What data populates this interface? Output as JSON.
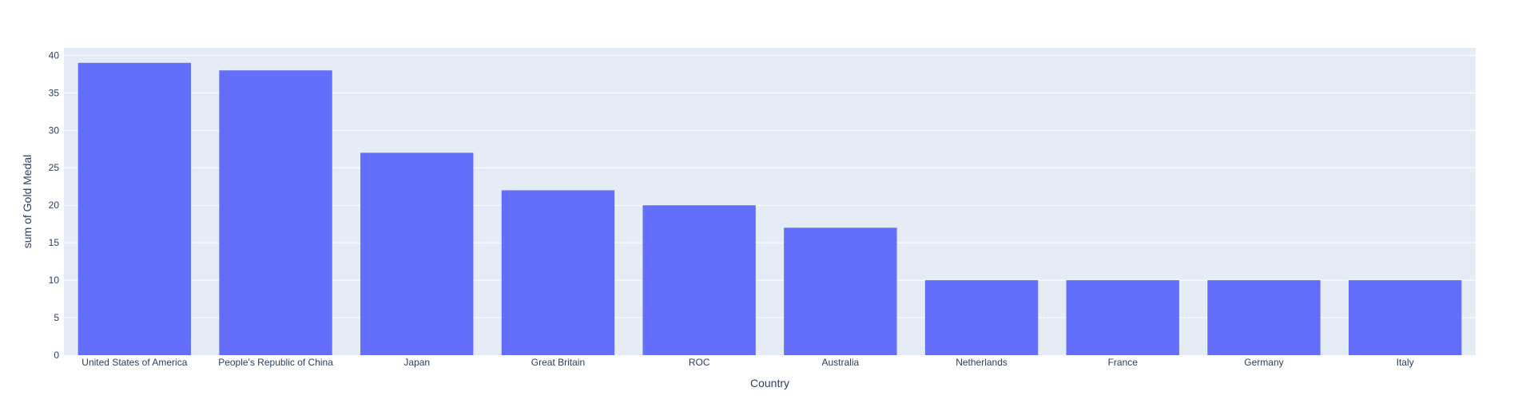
{
  "chart_data": {
    "type": "bar",
    "title": "",
    "xlabel": "Country",
    "ylabel": "sum of Gold Medal",
    "categories": [
      "United States of America",
      "People's Republic of China",
      "Japan",
      "Great Britain",
      "ROC",
      "Australia",
      "Netherlands",
      "France",
      "Germany",
      "Italy"
    ],
    "values": [
      39,
      38,
      27,
      22,
      20,
      17,
      10,
      10,
      10,
      10
    ],
    "ylim": [
      0,
      41
    ],
    "yticks": [
      0,
      5,
      10,
      15,
      20,
      25,
      30,
      35,
      40
    ],
    "grid": true,
    "legend": "none"
  },
  "colors": {
    "bar": "#636efa",
    "plot_background": "#e5ecf6",
    "grid": "#ffffff",
    "text": "#2a3f5f"
  }
}
